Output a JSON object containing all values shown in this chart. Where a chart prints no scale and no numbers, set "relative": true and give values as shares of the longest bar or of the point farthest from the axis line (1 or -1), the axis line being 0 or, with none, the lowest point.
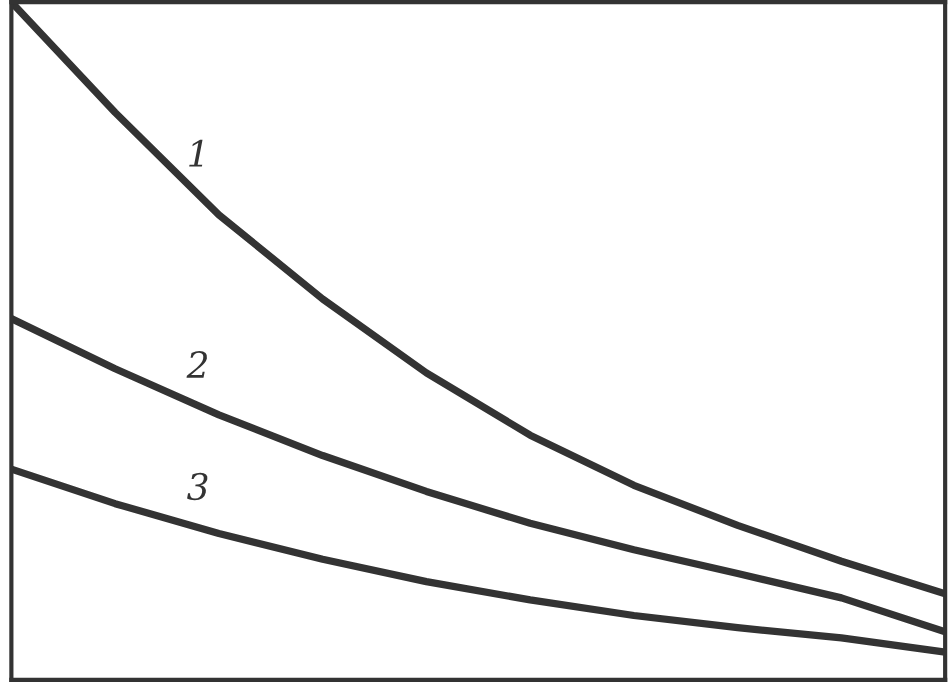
{
  "chart_data": {
    "type": "line",
    "relative": true,
    "categories": [
      null,
      null,
      null,
      null,
      null,
      null,
      null,
      null,
      null,
      null
    ],
    "series": [
      {
        "name": "1",
        "color": "#333333",
        "values": [
          1.0,
          0.837,
          0.686,
          0.562,
          0.453,
          0.361,
          0.287,
          0.228,
          0.175,
          0.127
        ]
      },
      {
        "name": "2",
        "color": "#333333",
        "values": [
          0.533,
          0.459,
          0.391,
          0.331,
          0.278,
          0.231,
          0.192,
          0.157,
          0.121,
          0.071
        ]
      },
      {
        "name": "3",
        "color": "#333333",
        "values": [
          0.311,
          0.26,
          0.216,
          0.178,
          0.145,
          0.118,
          0.095,
          0.077,
          0.062,
          0.041
        ]
      }
    ],
    "marker": "none",
    "line_style": "solid"
  }
}
